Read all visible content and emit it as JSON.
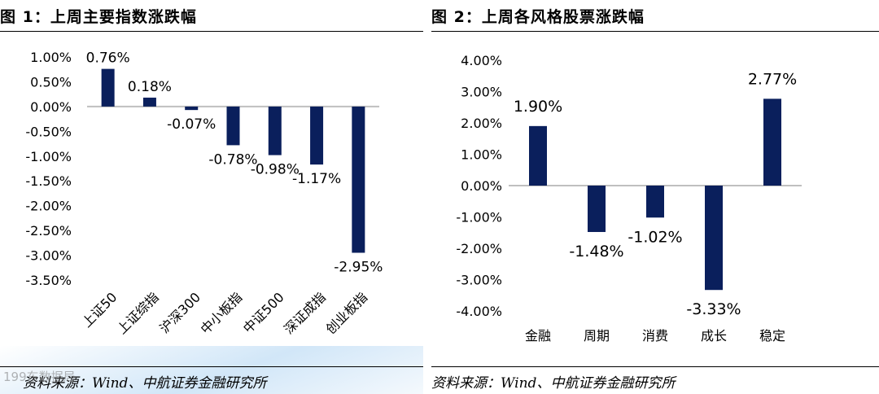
{
  "colors": {
    "bar": "#0a1f5c",
    "axis": "#bfbfbf",
    "rule": "#000000"
  },
  "watermark": "199东数据局",
  "chart_data": [
    {
      "type": "bar",
      "figure_label": "图 1：上周主要指数涨跌幅",
      "categories": [
        "上证50",
        "上证综指",
        "沪深300",
        "中小板指",
        "中证500",
        "深证成指",
        "创业板指"
      ],
      "values": [
        0.76,
        0.18,
        -0.07,
        -0.78,
        -0.98,
        -1.17,
        -2.95
      ],
      "data_labels": [
        "0.76%",
        "0.18%",
        "-0.07%",
        "-0.78%",
        "-0.98%",
        "-1.17%",
        "-2.95%"
      ],
      "ylim": [
        -3.5,
        1.0
      ],
      "yticks": [
        1.0,
        0.5,
        0.0,
        -0.5,
        -1.0,
        -1.5,
        -2.0,
        -2.5,
        -3.0,
        -3.5
      ],
      "ytick_labels": [
        "1.00%",
        "0.50%",
        "0.00%",
        "-0.50%",
        "-1.00%",
        "-1.50%",
        "-2.00%",
        "-2.50%",
        "-3.00%",
        "-3.50%"
      ],
      "source": "资料来源：Wind、中航证券金融研究所"
    },
    {
      "type": "bar",
      "figure_label": "图 2：上周各风格股票涨跌幅",
      "categories": [
        "金融",
        "周期",
        "消费",
        "成长",
        "稳定"
      ],
      "values": [
        1.9,
        -1.48,
        -1.02,
        -3.33,
        2.77
      ],
      "data_labels": [
        "1.90%",
        "-1.48%",
        "-1.02%",
        "-3.33%",
        "2.77%"
      ],
      "ylim": [
        -4.0,
        4.0
      ],
      "yticks": [
        4.0,
        3.0,
        2.0,
        1.0,
        0.0,
        -1.0,
        -2.0,
        -3.0,
        -4.0
      ],
      "ytick_labels": [
        "4.00%",
        "3.00%",
        "2.00%",
        "1.00%",
        "0.00%",
        "-1.00%",
        "-2.00%",
        "-3.00%",
        "-4.00%"
      ],
      "source": "资料来源：Wind、中航证券金融研究所"
    }
  ]
}
